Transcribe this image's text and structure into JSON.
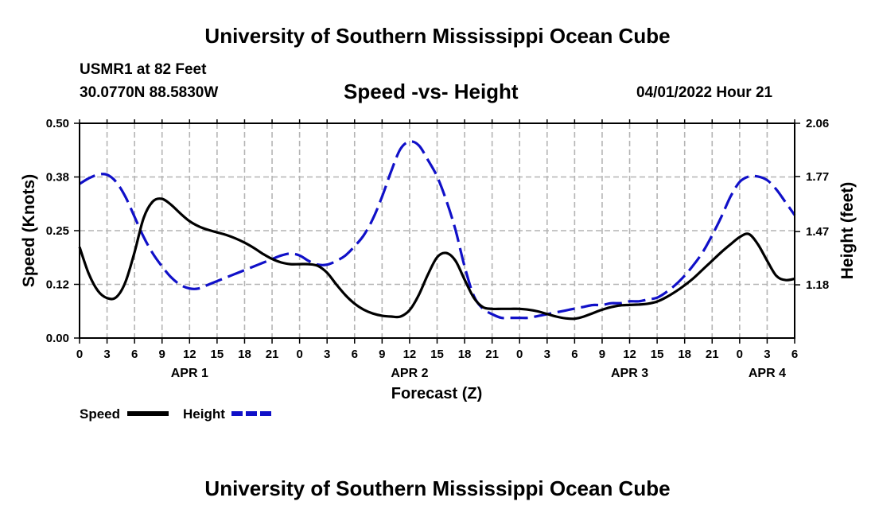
{
  "header": {
    "title": "University of Southern Mississippi Ocean Cube",
    "station": "USMR1 at 82 Feet",
    "coordinates": "30.0770N  88.5830W",
    "chart_title": "Speed -vs- Height",
    "datetime": "04/01/2022 Hour 21"
  },
  "footer": {
    "title": "University of Southern Mississippi Ocean Cube"
  },
  "colors": {
    "speed": "#000000",
    "height": "#1010c8",
    "grid": "#b4b4b4"
  },
  "chart_data": {
    "type": "line",
    "title": "Speed -vs- Height",
    "xlabel": "Forecast (Z)",
    "ylabel": "Speed (Knots)",
    "y2label": "Height (feet)",
    "xlim": [
      0,
      78
    ],
    "ylim": [
      0,
      0.5
    ],
    "y2lim": [
      0.89,
      2.06
    ],
    "grid": true,
    "legend_position": "bottom-left",
    "x_ticks": [
      0,
      3,
      6,
      9,
      12,
      15,
      18,
      21,
      24,
      27,
      30,
      33,
      36,
      39,
      42,
      45,
      48,
      51,
      54,
      57,
      60,
      63,
      66,
      69,
      72,
      75,
      78
    ],
    "x_tick_labels": [
      "0",
      "3",
      "6",
      "9",
      "12",
      "15",
      "18",
      "21",
      "0",
      "3",
      "6",
      "9",
      "12",
      "15",
      "18",
      "21",
      "0",
      "3",
      "6",
      "9",
      "12",
      "15",
      "18",
      "21",
      "0",
      "3",
      "6"
    ],
    "day_labels": [
      {
        "x": 12,
        "label": "APR 1"
      },
      {
        "x": 36,
        "label": "APR 2"
      },
      {
        "x": 60,
        "label": "APR 3"
      },
      {
        "x": 75,
        "label": "APR 4"
      }
    ],
    "y_ticks": [
      0,
      0.125,
      0.25,
      0.375,
      0.5
    ],
    "y_tick_labels": [
      "0.00",
      "0.12",
      "0.25",
      "0.38",
      "0.50"
    ],
    "y2_ticks": [
      1.18,
      1.47,
      1.77,
      2.06
    ],
    "y2_tick_labels": [
      "1.18",
      "1.47",
      "1.77",
      "2.06"
    ],
    "series": [
      {
        "name": "Speed",
        "axis": "left",
        "style": "solid",
        "x": [
          0,
          1,
          2,
          3,
          4,
          5,
          6,
          7,
          8,
          9,
          10,
          11,
          12,
          13,
          14,
          15,
          16,
          17,
          18,
          19,
          20,
          21,
          22,
          23,
          24,
          25,
          26,
          27,
          28,
          29,
          30,
          31,
          32,
          33,
          34,
          35,
          36,
          37,
          38,
          39,
          40,
          41,
          42,
          43,
          44,
          45,
          46,
          47,
          48,
          49,
          50,
          51,
          52,
          53,
          54,
          55,
          56,
          57,
          58,
          59,
          60,
          61,
          62,
          63,
          64,
          65,
          66,
          67,
          68,
          69,
          70,
          71,
          72,
          73,
          74,
          75,
          76,
          77,
          78
        ],
        "values": [
          0.212,
          0.15,
          0.11,
          0.093,
          0.095,
          0.13,
          0.2,
          0.28,
          0.318,
          0.324,
          0.31,
          0.29,
          0.272,
          0.26,
          0.252,
          0.246,
          0.24,
          0.232,
          0.222,
          0.21,
          0.196,
          0.184,
          0.176,
          0.172,
          0.172,
          0.172,
          0.168,
          0.152,
          0.125,
          0.1,
          0.08,
          0.066,
          0.057,
          0.052,
          0.05,
          0.05,
          0.065,
          0.1,
          0.148,
          0.188,
          0.198,
          0.18,
          0.136,
          0.094,
          0.072,
          0.068,
          0.068,
          0.068,
          0.068,
          0.066,
          0.062,
          0.056,
          0.05,
          0.046,
          0.045,
          0.05,
          0.058,
          0.066,
          0.072,
          0.076,
          0.077,
          0.078,
          0.08,
          0.085,
          0.095,
          0.108,
          0.123,
          0.14,
          0.16,
          0.18,
          0.2,
          0.218,
          0.235,
          0.242,
          0.218,
          0.18,
          0.145,
          0.135,
          0.138
        ]
      },
      {
        "name": "Height",
        "axis": "right",
        "style": "dashed",
        "x": [
          0,
          1,
          2,
          3,
          4,
          5,
          6,
          7,
          8,
          9,
          10,
          11,
          12,
          13,
          14,
          15,
          16,
          17,
          18,
          19,
          20,
          21,
          22,
          23,
          24,
          25,
          26,
          27,
          28,
          29,
          30,
          31,
          32,
          33,
          34,
          35,
          36,
          37,
          38,
          39,
          40,
          41,
          42,
          43,
          44,
          45,
          46,
          47,
          48,
          49,
          50,
          51,
          52,
          53,
          54,
          55,
          56,
          57,
          58,
          59,
          60,
          61,
          62,
          63,
          64,
          65,
          66,
          67,
          68,
          69,
          70,
          71,
          72,
          73,
          74,
          75,
          76,
          77,
          78
        ],
        "values": [
          1.73,
          1.76,
          1.78,
          1.78,
          1.74,
          1.66,
          1.55,
          1.44,
          1.35,
          1.28,
          1.22,
          1.18,
          1.16,
          1.16,
          1.18,
          1.2,
          1.22,
          1.24,
          1.26,
          1.28,
          1.3,
          1.32,
          1.34,
          1.35,
          1.34,
          1.31,
          1.29,
          1.29,
          1.31,
          1.34,
          1.39,
          1.45,
          1.54,
          1.66,
          1.8,
          1.92,
          1.96,
          1.94,
          1.86,
          1.77,
          1.64,
          1.48,
          1.28,
          1.12,
          1.05,
          1.02,
          1.0,
          1.0,
          1.0,
          1.0,
          1.01,
          1.02,
          1.03,
          1.04,
          1.05,
          1.06,
          1.07,
          1.07,
          1.08,
          1.08,
          1.09,
          1.09,
          1.1,
          1.11,
          1.14,
          1.18,
          1.23,
          1.29,
          1.36,
          1.45,
          1.55,
          1.66,
          1.74,
          1.77,
          1.77,
          1.75,
          1.7,
          1.63,
          1.56
        ]
      }
    ]
  }
}
